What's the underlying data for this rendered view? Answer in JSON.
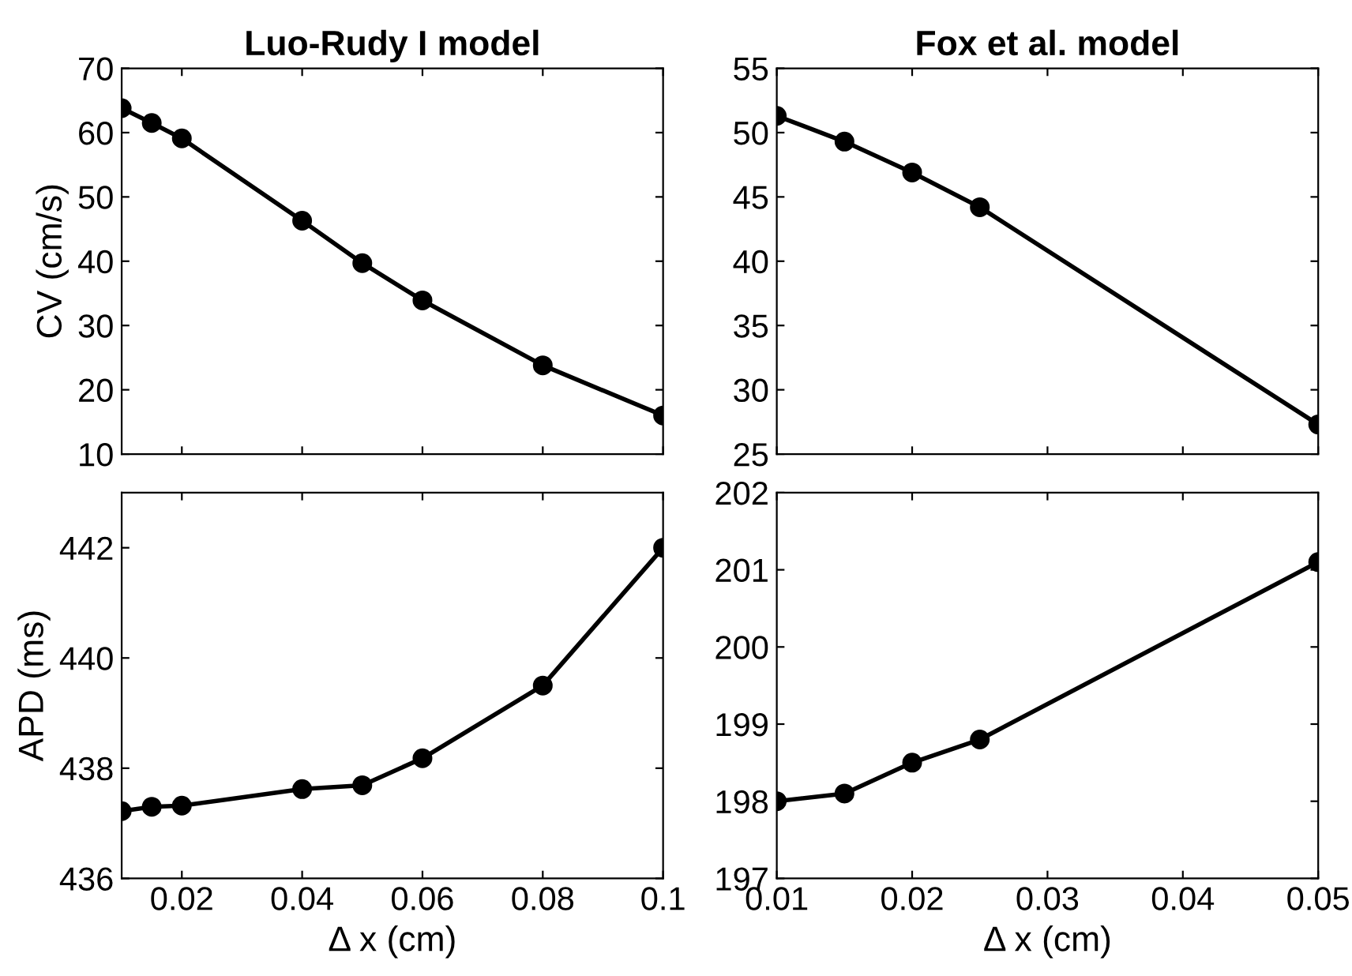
{
  "chart_data": [
    {
      "type": "line",
      "title": "Luo-Rudy I model",
      "ylabel": "CV (cm/s)",
      "x": [
        0.01,
        0.015,
        0.02,
        0.04,
        0.05,
        0.06,
        0.08,
        0.1
      ],
      "series": [
        {
          "color": "#000000",
          "values": [
            63.8,
            61.5,
            59.1,
            46.3,
            39.7,
            33.9,
            23.8,
            16
          ]
        }
      ],
      "xlim": [
        0.01,
        0.1
      ],
      "xticks": [
        {
          "value": 0.02,
          "label": null
        },
        {
          "value": 0.04,
          "label": null
        },
        {
          "value": 0.06,
          "label": null
        },
        {
          "value": 0.08,
          "label": null
        },
        {
          "value": 0.1,
          "label": null
        }
      ],
      "ylim": [
        10,
        70
      ],
      "yticks": [
        10,
        20,
        30,
        40,
        50,
        60,
        70
      ],
      "tick_labels": "y",
      "marker": "circle",
      "line_style": "solid",
      "grid": false,
      "legend": false
    },
    {
      "type": "line",
      "title": "Fox et al. model",
      "x": [
        0.01,
        0.015,
        0.02,
        0.025,
        0.05
      ],
      "series": [
        {
          "color": "#000000",
          "values": [
            51.3,
            49.3,
            46.9,
            44.2,
            27.3
          ]
        }
      ],
      "xlim": [
        0.01,
        0.05
      ],
      "xticks": [
        {
          "value": 0.01,
          "label": null
        },
        {
          "value": 0.02,
          "label": null
        },
        {
          "value": 0.03,
          "label": null
        },
        {
          "value": 0.04,
          "label": null
        },
        {
          "value": 0.05,
          "label": null
        }
      ],
      "ylim": [
        25,
        55
      ],
      "yticks": [
        25,
        30,
        35,
        40,
        45,
        50,
        55
      ],
      "tick_labels": "y",
      "marker": "circle",
      "line_style": "solid",
      "grid": false,
      "legend": false
    },
    {
      "type": "line",
      "xlabel": "Δ x (cm)",
      "ylabel": "APD (ms)",
      "x": [
        0.01,
        0.015,
        0.02,
        0.04,
        0.05,
        0.06,
        0.08,
        0.1
      ],
      "series": [
        {
          "color": "#000000",
          "values": [
            437.22,
            437.3,
            437.32,
            437.62,
            437.69,
            438.18,
            439.5,
            442
          ]
        }
      ],
      "xlim": [
        0.01,
        0.1
      ],
      "xticks": [
        0.02,
        0.04,
        0.06,
        0.08,
        0.1
      ],
      "ylim": [
        436,
        443
      ],
      "yticks": [
        436,
        438,
        440,
        442
      ],
      "marker": "circle",
      "line_style": "solid",
      "grid": false,
      "legend": false
    },
    {
      "type": "line",
      "xlabel": "Δ x (cm)",
      "x": [
        0.01,
        0.015,
        0.02,
        0.025,
        0.05
      ],
      "series": [
        {
          "color": "#000000",
          "values": [
            198,
            198.1,
            198.5,
            198.8,
            201.1
          ]
        }
      ],
      "xlim": [
        0.01,
        0.05
      ],
      "xticks": [
        0.01,
        0.02,
        0.03,
        0.04,
        0.05
      ],
      "ylim": [
        197,
        202
      ],
      "yticks": [
        197,
        198,
        199,
        200,
        201,
        202
      ],
      "marker": "circle",
      "line_style": "solid",
      "grid": false,
      "legend": false
    }
  ]
}
